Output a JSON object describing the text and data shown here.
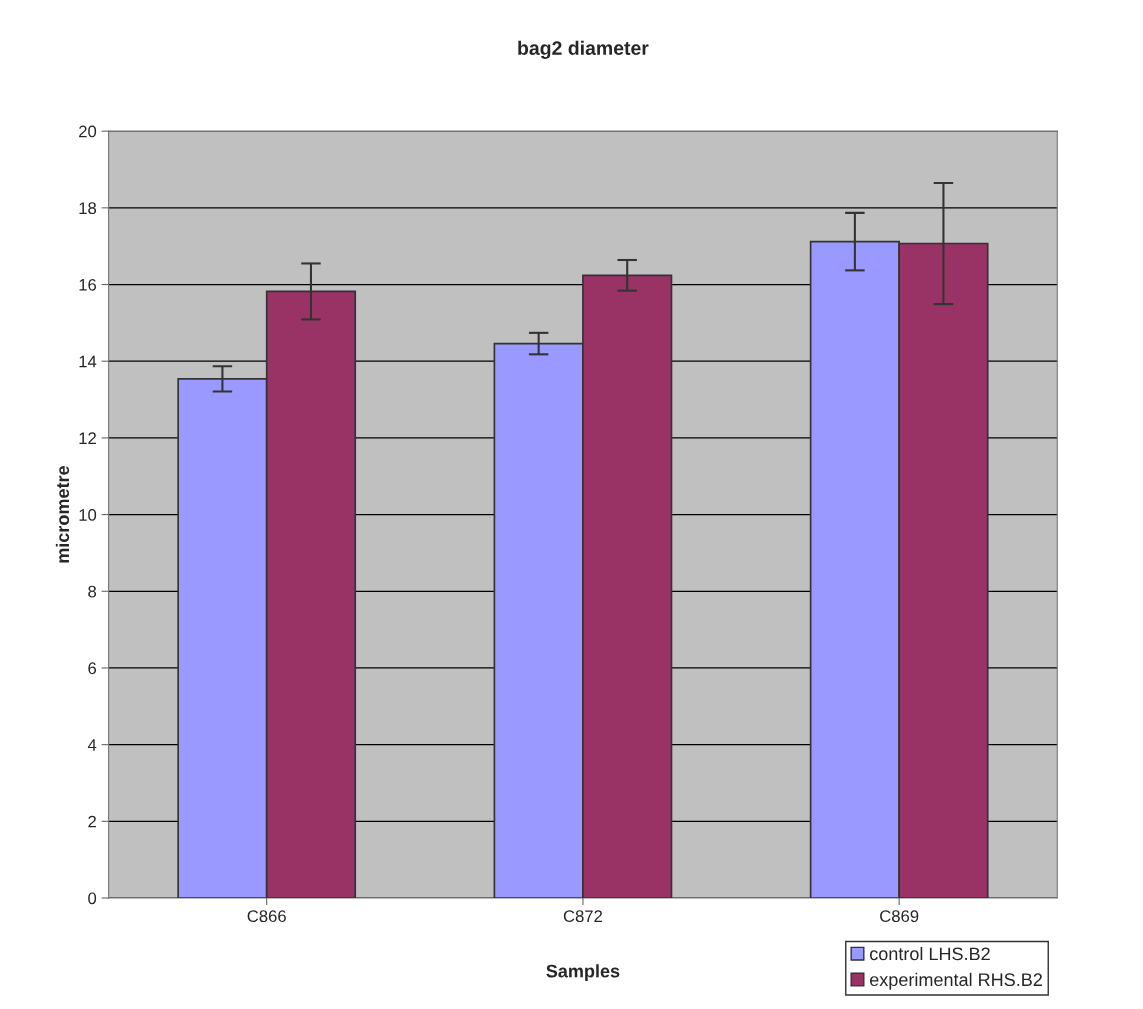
{
  "chart_data": {
    "type": "bar",
    "title": "bag2 diameter",
    "xlabel": "Samples",
    "ylabel": "micrometre",
    "categories": [
      "C866",
      "C872",
      "C869"
    ],
    "series": [
      {
        "name": "control LHS.B2",
        "color": "#9999ff",
        "values": [
          13.54,
          14.46,
          17.12
        ],
        "errors": [
          0.33,
          0.28,
          0.75
        ]
      },
      {
        "name": "experimental RHS.B2",
        "color": "#993366",
        "values": [
          15.82,
          16.24,
          17.07
        ],
        "errors": [
          0.73,
          0.4,
          1.58
        ]
      }
    ],
    "ylim": [
      0,
      20
    ],
    "yticks": [
      0,
      2,
      4,
      6,
      8,
      10,
      12,
      14,
      16,
      18,
      20
    ],
    "grid": "y",
    "legend": "bottom right"
  }
}
